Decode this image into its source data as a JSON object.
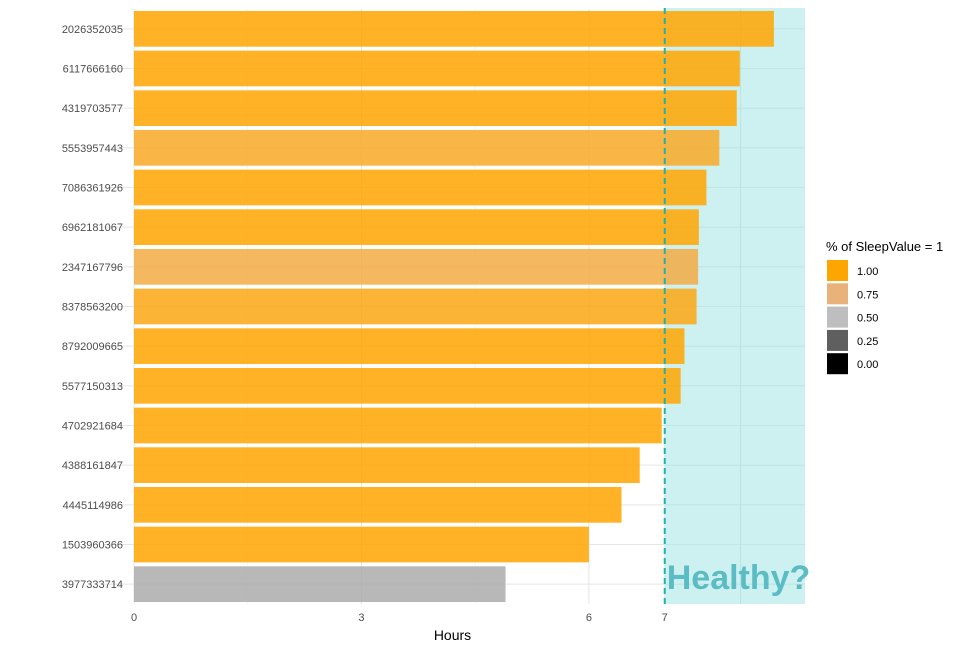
{
  "chart_data": {
    "type": "bar",
    "orientation": "horizontal",
    "xlabel": "Hours",
    "ylabel": "",
    "xlim": [
      0,
      8.85
    ],
    "x_ticks": [
      0,
      3,
      6,
      7
    ],
    "categories": [
      "2026352035",
      "6117666160",
      "4319703577",
      "5553957443",
      "7086361926",
      "6962181067",
      "2347167796",
      "8378563200",
      "8792009665",
      "5577150313",
      "4702921684",
      "4388161847",
      "4445114986",
      "1503960366",
      "3977333714"
    ],
    "values": [
      8.44,
      7.99,
      7.95,
      7.72,
      7.55,
      7.45,
      7.44,
      7.42,
      7.26,
      7.21,
      6.96,
      6.67,
      6.43,
      6.0,
      4.9
    ],
    "fill_values": [
      1.0,
      1.0,
      1.0,
      0.92,
      1.0,
      1.0,
      0.86,
      0.96,
      1.0,
      1.0,
      1.0,
      1.0,
      1.0,
      1.0,
      0.45
    ],
    "reference_line": {
      "x": 7,
      "style": "dashed",
      "color": "#20b2aa"
    },
    "healthy_region": {
      "from": 7,
      "color": "#cdf1f0"
    },
    "annotation": {
      "text": "Healthy?",
      "color": "#5bbcc4"
    },
    "legend": {
      "title": "% of SleepValue = 1",
      "position": "right",
      "entries": [
        {
          "label": "1.00",
          "color": "#ffa500"
        },
        {
          "label": "0.75",
          "color": "#e8b27a"
        },
        {
          "label": "0.50",
          "color": "#bebebe"
        },
        {
          "label": "0.25",
          "color": "#5f5f5f"
        },
        {
          "label": "0.00",
          "color": "#000000"
        }
      ]
    },
    "grid": true
  }
}
